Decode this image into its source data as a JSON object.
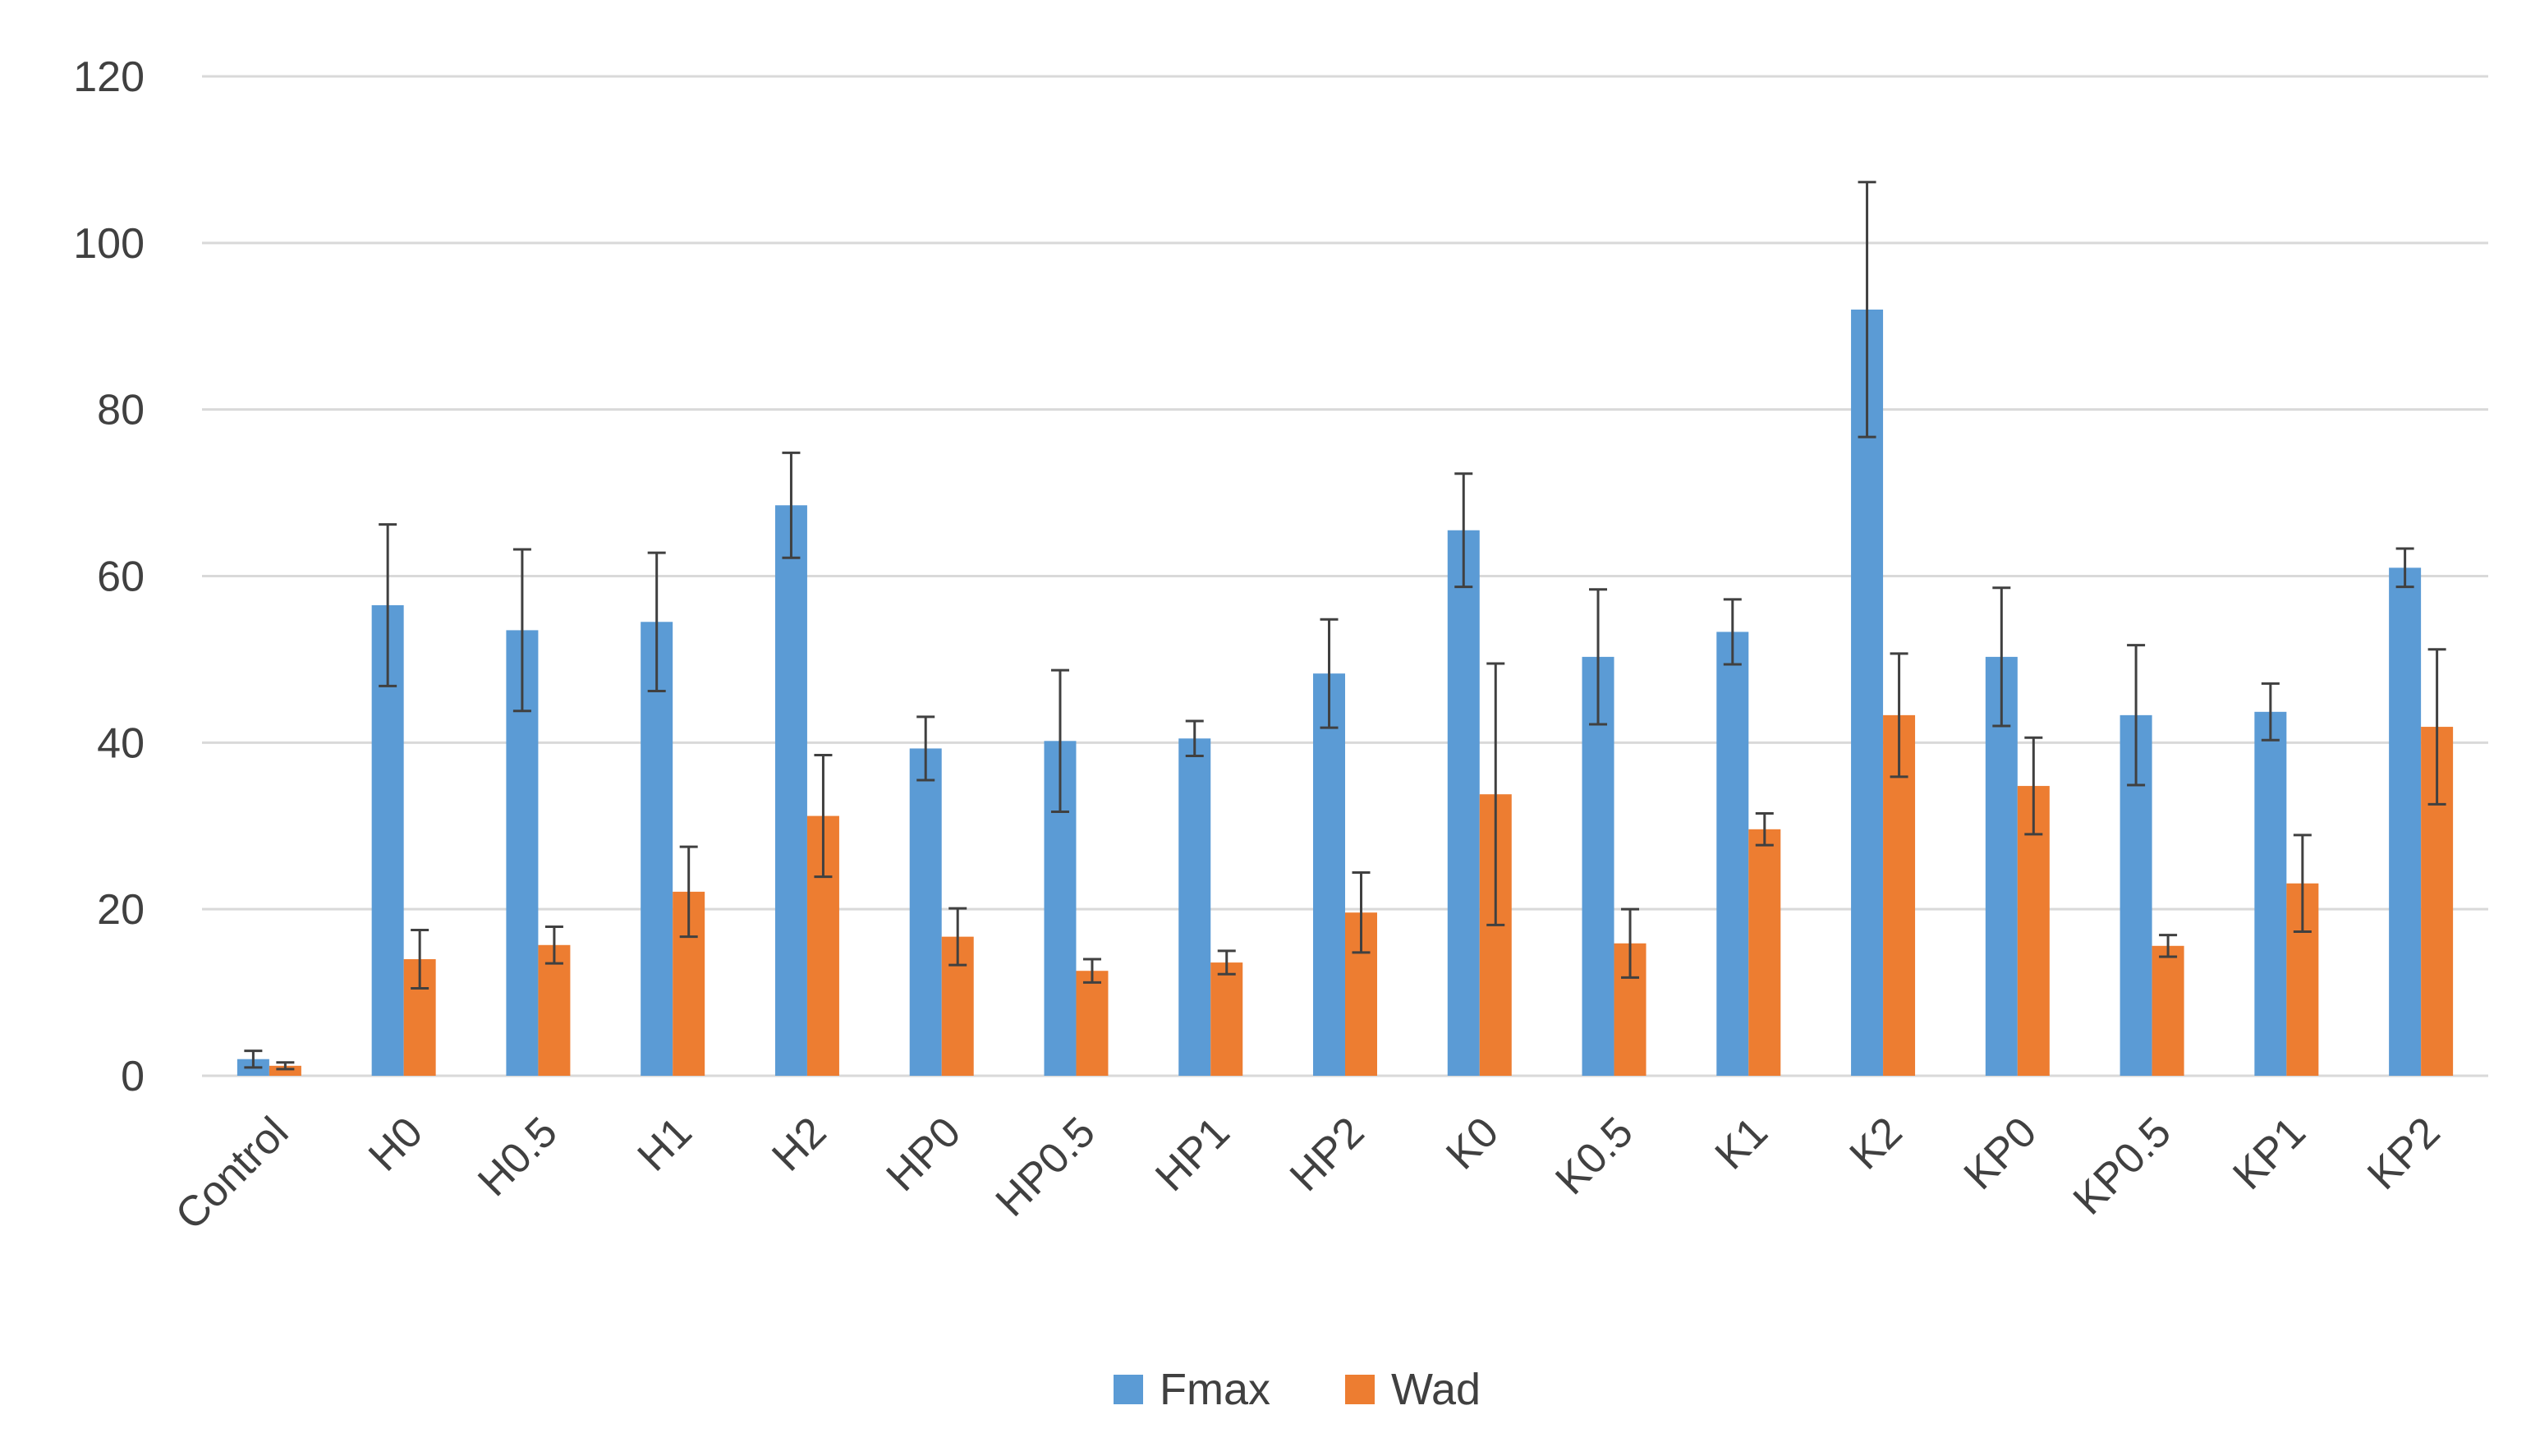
{
  "chart_data": {
    "type": "bar",
    "title": "",
    "xlabel": "",
    "ylabel": "",
    "ylim": [
      0,
      120
    ],
    "yticks": [
      0,
      20,
      40,
      60,
      80,
      100,
      120
    ],
    "grid": true,
    "legend_position": "bottom",
    "categories": [
      "Control",
      "H0",
      "H0.5",
      "H1",
      "H2",
      "HP0",
      "HP0.5",
      "HP1",
      "HP2",
      "K0",
      "K0.5",
      "K1",
      "K2",
      "KP0",
      "KP0.5",
      "KP1",
      "KP2"
    ],
    "series": [
      {
        "name": "Fmax",
        "color": "#5b9bd5",
        "values": [
          2,
          56.5,
          53.5,
          54.5,
          68.5,
          39.3,
          40.2,
          40.5,
          48.3,
          65.5,
          50.3,
          53.3,
          92,
          50.3,
          43.3,
          43.7,
          61
        ],
        "errors": [
          1,
          9.7,
          9.7,
          8.3,
          6.3,
          3.8,
          8.5,
          2.1,
          6.5,
          6.8,
          8.1,
          3.9,
          15.3,
          8.3,
          8.4,
          3.4,
          2.3
        ]
      },
      {
        "name": "Wad",
        "color": "#ed7d31",
        "values": [
          1.2,
          14,
          15.7,
          22.1,
          31.2,
          16.7,
          12.6,
          13.6,
          19.6,
          33.8,
          15.9,
          29.6,
          43.3,
          34.8,
          15.6,
          23.1,
          41.9
        ],
        "errors": [
          0.4,
          3.5,
          2.2,
          5.4,
          7.3,
          3.4,
          1.4,
          1.4,
          4.8,
          15.7,
          4.1,
          1.9,
          7.4,
          5.8,
          1.3,
          5.8,
          9.3
        ]
      }
    ]
  }
}
